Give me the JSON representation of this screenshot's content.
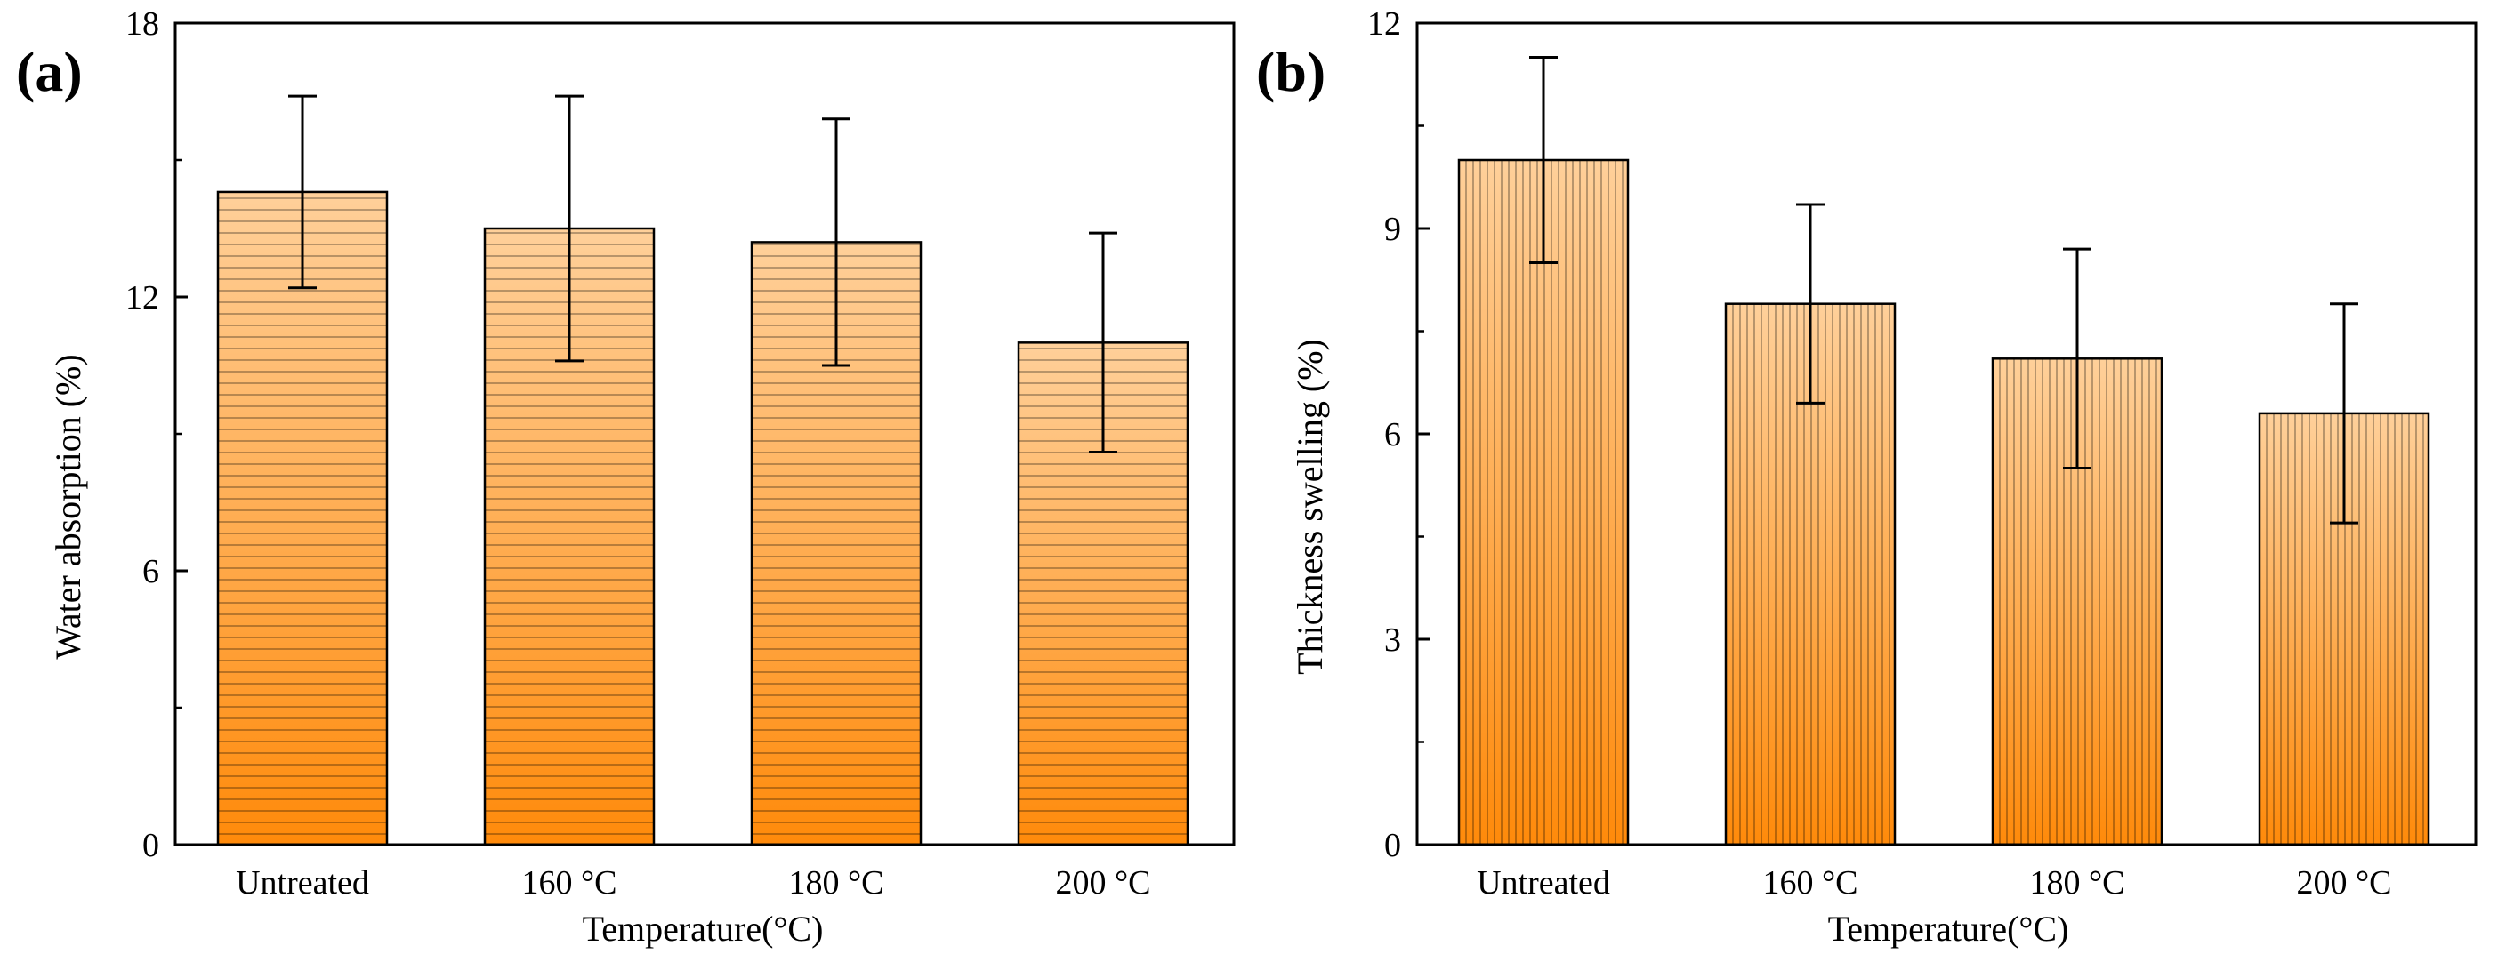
{
  "figure": {
    "panels": [
      "(a)",
      "(b)"
    ]
  },
  "chart_data": [
    {
      "type": "bar",
      "panel": "(a)",
      "title": "",
      "categories": [
        "Untreated",
        "160 °C",
        "180 °C",
        "200 °C"
      ],
      "values": [
        14.3,
        13.5,
        13.2,
        11.0
      ],
      "errors": [
        2.1,
        2.9,
        2.7,
        2.4
      ],
      "xlabel": "Temperature(°C)",
      "ylabel": "Water absorption (%)",
      "ylim": [
        0,
        18
      ],
      "yticks": [
        0,
        6,
        12,
        18
      ],
      "ytick_labels": [
        "0",
        "6",
        "12",
        "18"
      ],
      "hatch": "horizontal",
      "colors": {
        "top": "#ffd09a",
        "bottom": "#ff8a0a",
        "line": "#000000"
      }
    },
    {
      "type": "bar",
      "panel": "(b)",
      "title": "",
      "categories": [
        "Untreated",
        "160 °C",
        "180 °C",
        "200 °C"
      ],
      "values": [
        10.0,
        7.9,
        7.1,
        6.3
      ],
      "errors": [
        1.5,
        1.45,
        1.6,
        1.6
      ],
      "xlabel": "Temperature(°C)",
      "ylabel": "Thickness swelling (%)",
      "ylim": [
        0,
        12
      ],
      "yticks": [
        0,
        3,
        6,
        9,
        12
      ],
      "ytick_labels": [
        "0",
        "3",
        "6",
        "9",
        "12"
      ],
      "hatch": "vertical",
      "colors": {
        "top": "#ffd09a",
        "bottom": "#ff8a0a",
        "line": "#000000"
      }
    }
  ]
}
